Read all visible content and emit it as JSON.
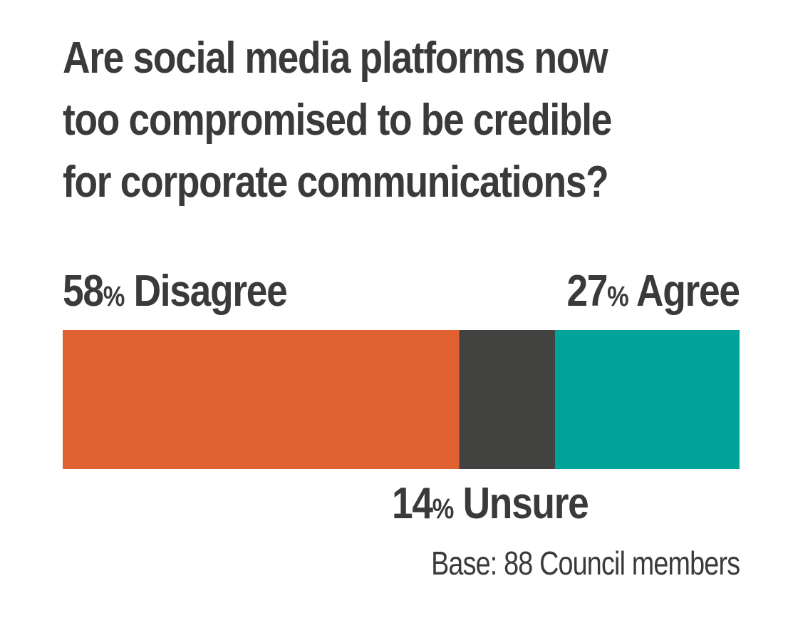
{
  "chart_data": {
    "type": "bar",
    "orientation": "horizontal-stacked",
    "title_lines": [
      "Are social media platforms now",
      "too compromised to be credible",
      "for corporate communications?"
    ],
    "segments": [
      {
        "value": 58,
        "pct_sign": "%",
        "label": "Disagree",
        "color": "#e06132"
      },
      {
        "value": 14,
        "pct_sign": "%",
        "label": "Unsure",
        "color": "#424240"
      },
      {
        "value": 27,
        "pct_sign": "%",
        "label": "Agree",
        "color": "#00a39a"
      }
    ],
    "note": "Base: 88 Council members"
  }
}
